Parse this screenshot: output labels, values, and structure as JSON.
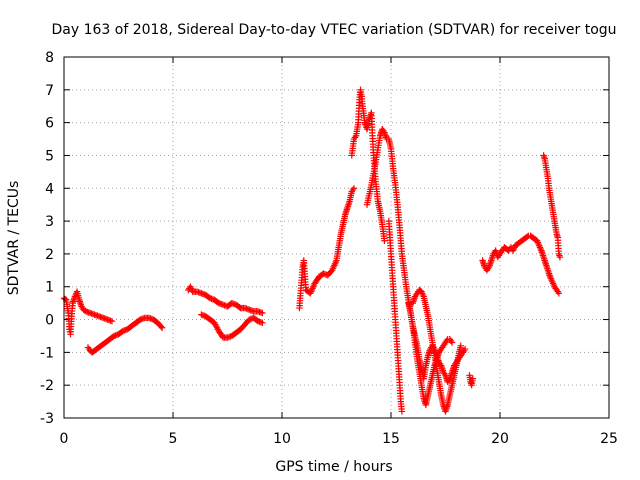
{
  "chart_data": {
    "type": "scatter",
    "title": "Day 163 of 2018, Sidereal Day-to-day VTEC variation (SDTVAR) for receiver togu",
    "xlabel": "GPS time / hours",
    "ylabel": "SDTVAR / TECUs",
    "xlim": [
      0,
      25
    ],
    "ylim": [
      -3,
      8
    ],
    "xticks": [
      0,
      5,
      10,
      15,
      20,
      25
    ],
    "yticks": [
      -3,
      -2,
      -1,
      0,
      1,
      2,
      3,
      4,
      5,
      6,
      7,
      8
    ],
    "grid": true,
    "marker": "plus",
    "color": "#ff0000",
    "segments": [
      {
        "name": "seg-a",
        "points": [
          [
            0.0,
            0.65
          ],
          [
            0.1,
            0.6
          ],
          [
            0.2,
            0.2
          ],
          [
            0.25,
            -0.3
          ],
          [
            0.3,
            -0.45
          ],
          [
            0.35,
            0.1
          ],
          [
            0.4,
            0.5
          ],
          [
            0.5,
            0.7
          ],
          [
            0.6,
            0.85
          ],
          [
            0.7,
            0.6
          ],
          [
            0.8,
            0.4
          ],
          [
            0.9,
            0.3
          ],
          [
            1.0,
            0.25
          ],
          [
            1.2,
            0.2
          ],
          [
            1.4,
            0.15
          ],
          [
            1.6,
            0.1
          ],
          [
            1.8,
            0.05
          ],
          [
            2.0,
            0.0
          ],
          [
            2.2,
            -0.05
          ]
        ]
      },
      {
        "name": "seg-b",
        "points": [
          [
            1.1,
            -0.85
          ],
          [
            1.2,
            -0.95
          ],
          [
            1.3,
            -1.0
          ],
          [
            1.5,
            -0.9
          ],
          [
            1.7,
            -0.8
          ],
          [
            1.9,
            -0.7
          ],
          [
            2.1,
            -0.6
          ],
          [
            2.3,
            -0.5
          ],
          [
            2.5,
            -0.45
          ],
          [
            2.7,
            -0.35
          ],
          [
            2.9,
            -0.3
          ],
          [
            3.1,
            -0.2
          ],
          [
            3.3,
            -0.1
          ],
          [
            3.5,
            0.0
          ],
          [
            3.7,
            0.05
          ],
          [
            3.9,
            0.05
          ],
          [
            4.1,
            0.0
          ],
          [
            4.3,
            -0.1
          ],
          [
            4.5,
            -0.25
          ]
        ]
      },
      {
        "name": "seg-c",
        "points": [
          [
            5.7,
            0.9
          ],
          [
            5.8,
            1.0
          ],
          [
            5.9,
            0.85
          ],
          [
            6.1,
            0.85
          ],
          [
            6.3,
            0.8
          ],
          [
            6.5,
            0.75
          ],
          [
            6.7,
            0.65
          ],
          [
            6.9,
            0.6
          ],
          [
            7.1,
            0.5
          ],
          [
            7.3,
            0.45
          ],
          [
            7.5,
            0.4
          ],
          [
            7.7,
            0.5
          ],
          [
            7.9,
            0.45
          ],
          [
            8.1,
            0.35
          ],
          [
            8.3,
            0.35
          ],
          [
            8.5,
            0.3
          ],
          [
            8.7,
            0.25
          ],
          [
            8.9,
            0.25
          ],
          [
            9.1,
            0.2
          ]
        ]
      },
      {
        "name": "seg-d",
        "points": [
          [
            6.3,
            0.15
          ],
          [
            6.5,
            0.1
          ],
          [
            6.7,
            0.0
          ],
          [
            6.9,
            -0.1
          ],
          [
            7.1,
            -0.35
          ],
          [
            7.3,
            -0.55
          ],
          [
            7.5,
            -0.55
          ],
          [
            7.7,
            -0.5
          ],
          [
            7.9,
            -0.4
          ],
          [
            8.1,
            -0.3
          ],
          [
            8.3,
            -0.15
          ],
          [
            8.5,
            0.0
          ],
          [
            8.7,
            0.05
          ],
          [
            8.9,
            -0.05
          ],
          [
            9.1,
            -0.1
          ]
        ]
      },
      {
        "name": "seg-e",
        "points": [
          [
            10.8,
            0.35
          ],
          [
            10.85,
            0.8
          ],
          [
            10.9,
            1.2
          ],
          [
            10.95,
            1.6
          ],
          [
            11.0,
            1.8
          ],
          [
            11.1,
            0.9
          ],
          [
            11.3,
            0.8
          ],
          [
            11.5,
            1.1
          ],
          [
            11.7,
            1.3
          ],
          [
            11.9,
            1.4
          ],
          [
            12.1,
            1.35
          ],
          [
            12.3,
            1.5
          ],
          [
            12.5,
            1.8
          ],
          [
            12.6,
            2.2
          ],
          [
            12.7,
            2.6
          ],
          [
            12.8,
            2.9
          ],
          [
            12.9,
            3.2
          ],
          [
            13.0,
            3.4
          ],
          [
            13.1,
            3.6
          ],
          [
            13.2,
            3.9
          ],
          [
            13.3,
            4.0
          ]
        ]
      },
      {
        "name": "seg-f",
        "points": [
          [
            13.2,
            5.0
          ],
          [
            13.3,
            5.5
          ],
          [
            13.4,
            5.6
          ],
          [
            13.5,
            6.0
          ],
          [
            13.55,
            6.7
          ],
          [
            13.6,
            7.0
          ],
          [
            13.65,
            6.8
          ],
          [
            13.7,
            6.5
          ],
          [
            13.8,
            6.0
          ],
          [
            13.9,
            5.8
          ],
          [
            14.0,
            6.1
          ],
          [
            14.1,
            6.3
          ],
          [
            14.15,
            5.6
          ],
          [
            14.2,
            5.0
          ],
          [
            14.25,
            4.6
          ],
          [
            14.3,
            4.2
          ],
          [
            14.4,
            3.6
          ],
          [
            14.5,
            3.3
          ],
          [
            14.6,
            2.9
          ],
          [
            14.7,
            2.4
          ]
        ]
      },
      {
        "name": "seg-g",
        "points": [
          [
            14.9,
            3.0
          ],
          [
            14.95,
            2.5
          ],
          [
            15.0,
            2.0
          ],
          [
            15.05,
            1.5
          ],
          [
            15.1,
            1.0
          ],
          [
            15.15,
            0.5
          ],
          [
            15.2,
            0.0
          ],
          [
            15.25,
            -0.5
          ],
          [
            15.3,
            -1.0
          ],
          [
            15.35,
            -1.5
          ],
          [
            15.4,
            -2.0
          ],
          [
            15.45,
            -2.5
          ],
          [
            15.5,
            -2.8
          ]
        ]
      },
      {
        "name": "seg-h",
        "points": [
          [
            13.9,
            3.5
          ],
          [
            14.1,
            4.1
          ],
          [
            14.3,
            4.8
          ],
          [
            14.5,
            5.6
          ],
          [
            14.6,
            5.8
          ],
          [
            14.7,
            5.7
          ],
          [
            14.8,
            5.5
          ],
          [
            14.9,
            5.5
          ],
          [
            15.0,
            5.2
          ],
          [
            15.1,
            4.6
          ],
          [
            15.2,
            4.1
          ],
          [
            15.3,
            3.5
          ],
          [
            15.4,
            2.8
          ],
          [
            15.5,
            2.0
          ],
          [
            15.6,
            1.5
          ],
          [
            15.7,
            1.0
          ],
          [
            15.8,
            0.6
          ],
          [
            15.9,
            0.2
          ],
          [
            16.0,
            -0.2
          ],
          [
            16.1,
            -0.7
          ],
          [
            16.2,
            -1.2
          ],
          [
            16.3,
            -1.6
          ],
          [
            16.4,
            -2.0
          ],
          [
            16.5,
            -2.4
          ],
          [
            16.6,
            -2.6
          ],
          [
            16.7,
            -2.3
          ],
          [
            16.8,
            -2.0
          ],
          [
            16.9,
            -1.7
          ],
          [
            17.0,
            -1.4
          ],
          [
            17.1,
            -1.2
          ],
          [
            17.2,
            -1.0
          ],
          [
            17.3,
            -0.9
          ],
          [
            17.4,
            -0.8
          ],
          [
            17.5,
            -0.7
          ],
          [
            17.6,
            -0.6
          ],
          [
            17.7,
            -0.6
          ],
          [
            17.8,
            -0.7
          ]
        ]
      },
      {
        "name": "seg-i",
        "points": [
          [
            15.8,
            0.5
          ],
          [
            15.9,
            0.2
          ],
          [
            16.0,
            -0.2
          ],
          [
            16.1,
            -0.5
          ],
          [
            16.2,
            -0.8
          ],
          [
            16.3,
            -1.2
          ],
          [
            16.4,
            -1.5
          ],
          [
            16.5,
            -1.8
          ],
          [
            16.6,
            -1.4
          ],
          [
            16.7,
            -1.1
          ],
          [
            16.8,
            -0.9
          ],
          [
            16.9,
            -0.8
          ],
          [
            17.0,
            -0.9
          ],
          [
            17.1,
            -1.1
          ],
          [
            17.2,
            -1.3
          ],
          [
            17.3,
            -1.4
          ],
          [
            17.4,
            -1.6
          ],
          [
            17.5,
            -1.7
          ],
          [
            17.6,
            -1.9
          ],
          [
            17.7,
            -1.8
          ],
          [
            17.8,
            -1.6
          ],
          [
            17.9,
            -1.4
          ],
          [
            18.0,
            -1.3
          ],
          [
            18.1,
            -1.2
          ],
          [
            18.2,
            -1.1
          ],
          [
            18.3,
            -1.0
          ],
          [
            18.4,
            -0.9
          ]
        ]
      },
      {
        "name": "seg-j",
        "points": [
          [
            16.0,
            0.5
          ],
          [
            16.1,
            0.7
          ],
          [
            16.2,
            0.8
          ],
          [
            16.3,
            0.9
          ],
          [
            16.4,
            0.85
          ],
          [
            16.5,
            0.7
          ],
          [
            16.6,
            0.4
          ],
          [
            16.7,
            0.1
          ],
          [
            16.8,
            -0.3
          ],
          [
            16.9,
            -0.7
          ],
          [
            17.0,
            -1.1
          ],
          [
            17.1,
            -1.5
          ],
          [
            17.2,
            -1.9
          ],
          [
            17.3,
            -2.3
          ],
          [
            17.4,
            -2.6
          ],
          [
            17.5,
            -2.8
          ],
          [
            17.6,
            -2.6
          ],
          [
            17.7,
            -2.3
          ],
          [
            17.8,
            -2.0
          ],
          [
            17.9,
            -1.7
          ],
          [
            18.0,
            -1.4
          ],
          [
            18.1,
            -1.1
          ],
          [
            18.2,
            -0.8
          ]
        ]
      },
      {
        "name": "seg-k",
        "points": [
          [
            18.6,
            -1.7
          ],
          [
            18.65,
            -1.9
          ],
          [
            18.7,
            -2.0
          ],
          [
            18.75,
            -1.8
          ]
        ]
      },
      {
        "name": "seg-l",
        "points": [
          [
            19.2,
            1.8
          ],
          [
            19.3,
            1.6
          ],
          [
            19.4,
            1.5
          ],
          [
            19.5,
            1.6
          ],
          [
            19.6,
            1.8
          ],
          [
            19.7,
            2.0
          ],
          [
            19.8,
            2.1
          ],
          [
            19.9,
            1.9
          ],
          [
            20.0,
            2.0
          ],
          [
            20.1,
            2.1
          ],
          [
            20.2,
            2.2
          ],
          [
            20.3,
            2.15
          ],
          [
            20.4,
            2.1
          ],
          [
            20.5,
            2.2
          ],
          [
            20.6,
            2.1
          ],
          [
            20.7,
            2.25
          ],
          [
            20.8,
            2.3
          ],
          [
            20.9,
            2.35
          ],
          [
            21.0,
            2.4
          ],
          [
            21.1,
            2.45
          ],
          [
            21.2,
            2.5
          ],
          [
            21.3,
            2.55
          ],
          [
            21.4,
            2.55
          ],
          [
            21.5,
            2.5
          ],
          [
            21.6,
            2.45
          ],
          [
            21.7,
            2.4
          ],
          [
            21.8,
            2.25
          ],
          [
            21.9,
            2.1
          ],
          [
            22.0,
            1.9
          ],
          [
            22.1,
            1.7
          ],
          [
            22.2,
            1.5
          ],
          [
            22.3,
            1.3
          ],
          [
            22.4,
            1.15
          ],
          [
            22.5,
            1.0
          ],
          [
            22.6,
            0.9
          ],
          [
            22.7,
            0.8
          ]
        ]
      },
      {
        "name": "seg-m",
        "points": [
          [
            22.0,
            5.0
          ],
          [
            22.05,
            4.9
          ],
          [
            22.1,
            4.7
          ],
          [
            22.15,
            4.5
          ],
          [
            22.2,
            4.3
          ],
          [
            22.25,
            4.0
          ],
          [
            22.3,
            3.8
          ],
          [
            22.35,
            3.6
          ],
          [
            22.4,
            3.4
          ],
          [
            22.45,
            3.2
          ],
          [
            22.5,
            3.0
          ],
          [
            22.55,
            2.8
          ],
          [
            22.6,
            2.6
          ],
          [
            22.65,
            2.5
          ],
          [
            22.7,
            2.0
          ],
          [
            22.75,
            1.9
          ]
        ]
      }
    ]
  }
}
